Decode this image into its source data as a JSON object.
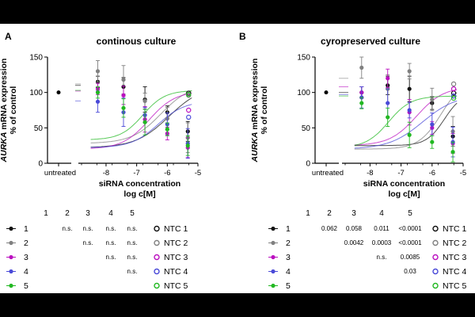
{
  "colors": {
    "1": "#111111",
    "2": "#808080",
    "3": "#bb10c0",
    "4": "#4a4ad8",
    "5": "#22b822"
  },
  "chart_data": [
    {
      "panel": "A",
      "type": "scatter",
      "title": "continous culture",
      "ylabel": [
        "AURKA mRNA expression",
        "% of control"
      ],
      "ylabel_italic_word": "AURKA",
      "xlabel": [
        "siRNA concentration",
        "log c[M]"
      ],
      "ylim": [
        0,
        150
      ],
      "yticks": [
        "0",
        "50",
        "100",
        "150"
      ],
      "xlim": [
        -8.8,
        -5
      ],
      "xticks": [
        "-8",
        "-7",
        "-6",
        "-5"
      ],
      "untreated_label": "untreated",
      "untreated_value": 100,
      "x": [
        -8.27,
        -7.43,
        -6.73,
        -6.0,
        -5.33
      ],
      "series": [
        {
          "name": "1",
          "values": [
            115,
            108,
            90,
            72,
            45
          ],
          "ntc": 99,
          "curve": {
            "top": 110,
            "bottom": 22,
            "ec50": -5.95,
            "hill": 0.8
          }
        },
        {
          "name": "2",
          "values": [
            130,
            118,
            88,
            63,
            36
          ],
          "ntc": 96,
          "curve": {
            "top": 112,
            "bottom": 28,
            "ec50": -6.2,
            "hill": 0.9
          }
        },
        {
          "name": "3",
          "values": [
            105,
            96,
            62,
            42,
            22
          ],
          "ntc": 75,
          "curve": {
            "top": 102,
            "bottom": 20,
            "ec50": -6.6,
            "hill": 1.0
          }
        },
        {
          "name": "4",
          "values": [
            87,
            72,
            68,
            55,
            28
          ],
          "ntc": 65,
          "curve": {
            "top": 88,
            "bottom": 22,
            "ec50": -6.3,
            "hill": 1.0
          }
        },
        {
          "name": "5",
          "values": [
            100,
            78,
            58,
            48,
            25
          ],
          "ntc": 97,
          "curve": {
            "top": 103,
            "bottom": 33,
            "ec50": -6.8,
            "hill": 1.2
          }
        }
      ],
      "stats_columns": [
        "1",
        "2",
        "3",
        "4",
        "5"
      ],
      "stats_rows": [
        [
          "",
          "n.s.",
          "n.s.",
          "n.s.",
          "n.s."
        ],
        [
          "",
          "",
          "n.s.",
          "n.s.",
          "n.s."
        ],
        [
          "",
          "",
          "",
          "n.s.",
          "n.s."
        ],
        [
          "",
          "",
          "",
          "",
          "n.s."
        ],
        [
          "",
          "",
          "",
          "",
          ""
        ]
      ],
      "legend": [
        "1",
        "2",
        "3",
        "4",
        "5"
      ],
      "ntc_legend": [
        "NTC 1",
        "NTC 2",
        "NTC 3",
        "NTC 4",
        "NTC 5"
      ]
    },
    {
      "panel": "B",
      "type": "scatter",
      "title": "cyropreserved culture",
      "ylabel": [
        "AURKA mRNA expression",
        "% of control"
      ],
      "ylabel_italic_word": "AURKA",
      "xlabel": [
        "siRNA concentration",
        "log c[M]"
      ],
      "ylim": [
        0,
        150
      ],
      "yticks": [
        "0",
        "50",
        "100",
        "150"
      ],
      "xlim": [
        -8.8,
        -5
      ],
      "xticks": [
        "-8",
        "-7",
        "-6",
        "-5"
      ],
      "untreated_label": "untreated",
      "untreated_value": 100,
      "x": [
        -8.27,
        -7.43,
        -6.73,
        -6.0,
        -5.33
      ],
      "series": [
        {
          "name": "1",
          "values": [
            100,
            110,
            105,
            85,
            38
          ],
          "ntc": 99,
          "curve": {
            "top": 100,
            "bottom": 25,
            "ec50": -5.6,
            "hill": 1.5
          }
        },
        {
          "name": "2",
          "values": [
            135,
            105,
            130,
            90,
            45
          ],
          "ntc": 112,
          "curve": {
            "top": 120,
            "bottom": 20,
            "ec50": -5.7,
            "hill": 1.2
          }
        },
        {
          "name": "3",
          "values": [
            100,
            120,
            72,
            50,
            28
          ],
          "ntc": 105,
          "curve": {
            "top": 108,
            "bottom": 25,
            "ec50": -6.5,
            "hill": 1.0
          }
        },
        {
          "name": "4",
          "values": [
            93,
            85,
            75,
            55,
            30
          ],
          "ntc": 95,
          "curve": {
            "top": 97,
            "bottom": 20,
            "ec50": -6.3,
            "hill": 0.8
          }
        },
        {
          "name": "5",
          "values": [
            85,
            65,
            40,
            30,
            16
          ],
          "ntc": 92,
          "curve": {
            "top": 95,
            "bottom": 22,
            "ec50": -7.4,
            "hill": 1.2
          }
        }
      ],
      "stats_columns": [
        "1",
        "2",
        "3",
        "4",
        "5"
      ],
      "stats_rows": [
        [
          "",
          "0.062",
          "0.058",
          "0.011",
          "<0.0001"
        ],
        [
          "",
          "",
          "0.0042",
          "0.0003",
          "<0.0001"
        ],
        [
          "",
          "",
          "",
          "n.s.",
          "0.0085"
        ],
        [
          "",
          "",
          "",
          "",
          "0.03"
        ],
        [
          "",
          "",
          "",
          "",
          ""
        ]
      ],
      "legend": [
        "1",
        "2",
        "3",
        "4",
        "5"
      ],
      "ntc_legend": [
        "NTC 1",
        "NTC 2",
        "NTC 3",
        "NTC 4",
        "NTC 5"
      ]
    }
  ]
}
